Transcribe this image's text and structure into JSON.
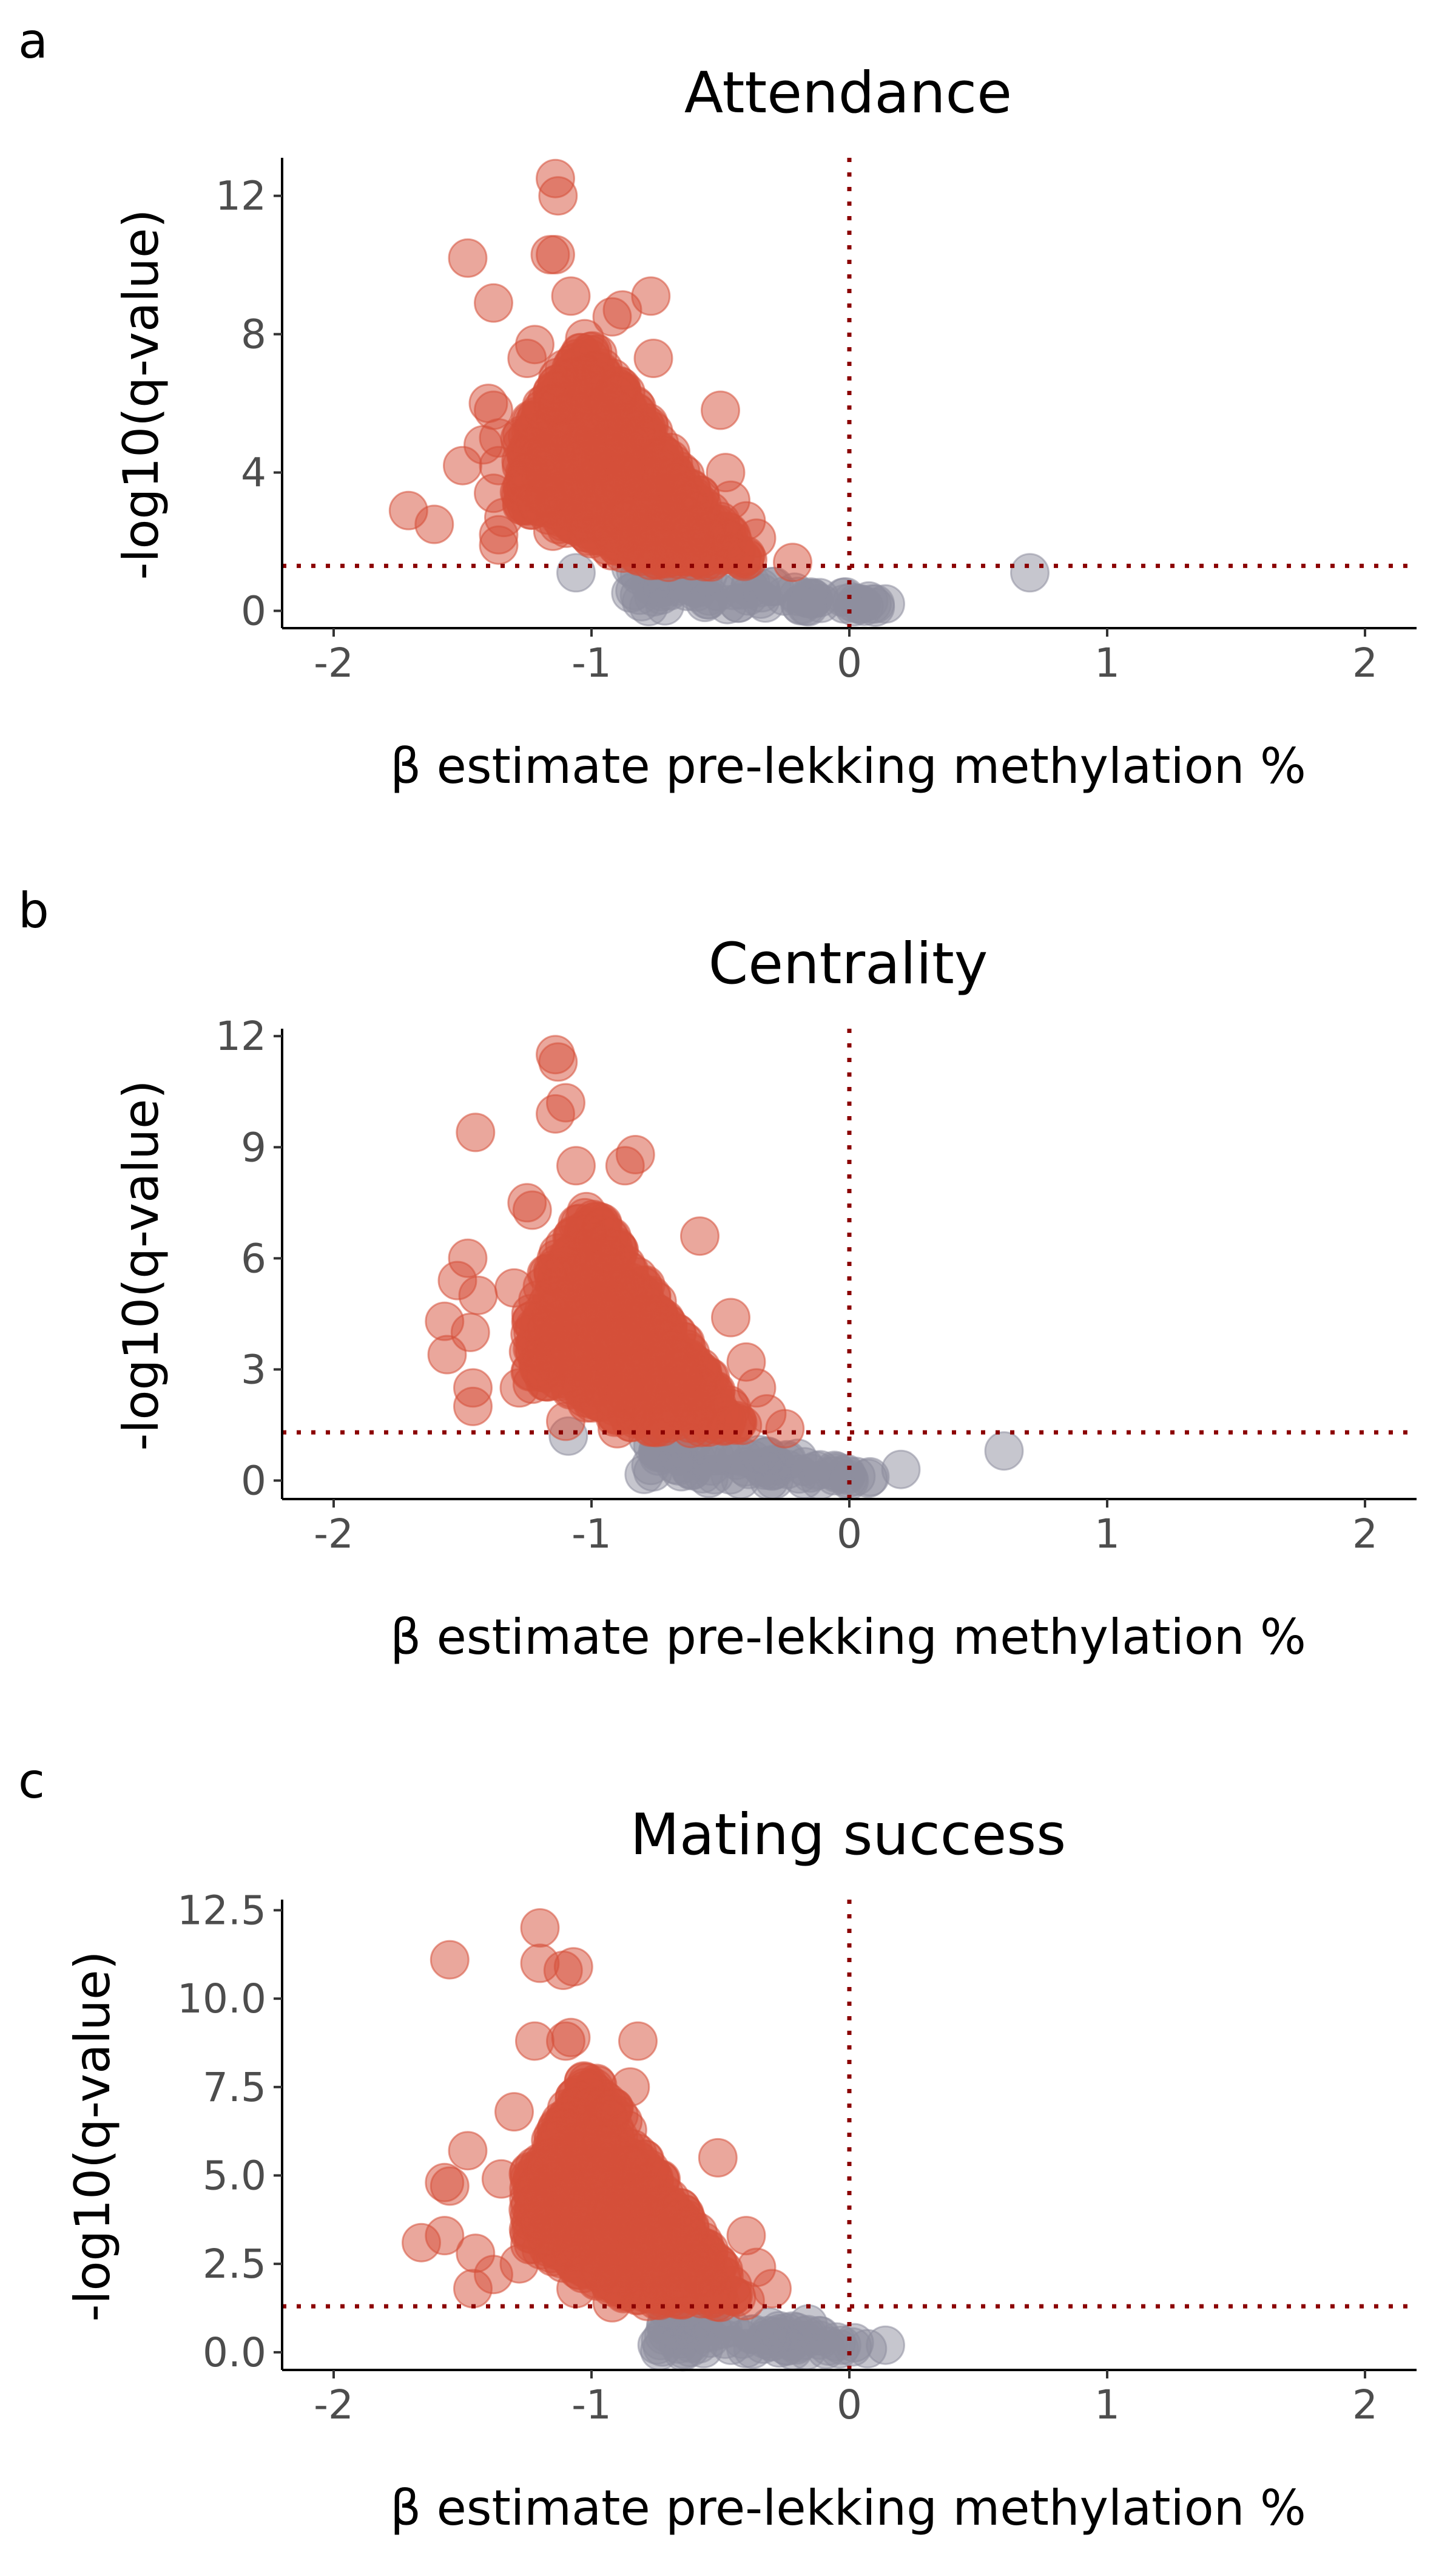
{
  "chart_data": [
    {
      "panel": "a",
      "type": "scatter",
      "title": "Attendance",
      "xlabel": "β estimate pre-lekking methylation %",
      "ylabel": "-log10(q-value)",
      "xlim": [
        -2.2,
        2.2
      ],
      "ylim": [
        -0.5,
        13.1
      ],
      "xticks": [
        -2,
        -1,
        0,
        1,
        2
      ],
      "yticks": [
        0,
        4,
        8,
        12
      ],
      "ytick_labels": [
        "0",
        "4",
        "8",
        "12"
      ],
      "ref_lines": {
        "x": 0,
        "y": 1.3
      },
      "grid": false,
      "legend": "none",
      "colors": {
        "significant": "#d6503a",
        "non_significant": "#8e8e9e"
      },
      "series": [
        {
          "group": "significant",
          "points": [
            [
              -1.14,
              12.5
            ],
            [
              -1.13,
              12.0
            ],
            [
              -1.14,
              10.3
            ],
            [
              -1.16,
              10.3
            ],
            [
              -1.48,
              10.2
            ],
            [
              -1.38,
              8.9
            ],
            [
              -0.77,
              9.1
            ],
            [
              -0.88,
              8.7
            ],
            [
              -1.08,
              9.1
            ],
            [
              -0.92,
              8.5
            ],
            [
              -1.22,
              7.7
            ],
            [
              -1.25,
              7.3
            ],
            [
              -0.76,
              7.3
            ],
            [
              -1.4,
              6.0
            ],
            [
              -1.38,
              5.8
            ],
            [
              -0.5,
              5.8
            ],
            [
              -1.36,
              5.0
            ],
            [
              -1.42,
              4.8
            ],
            [
              -1.36,
              4.2
            ],
            [
              -1.5,
              4.2
            ],
            [
              -1.38,
              3.4
            ],
            [
              -1.71,
              2.9
            ],
            [
              -1.61,
              2.5
            ],
            [
              -1.34,
              2.7
            ],
            [
              -1.36,
              2.2
            ],
            [
              -1.36,
              1.9
            ],
            [
              -0.48,
              4.0
            ],
            [
              -0.46,
              3.2
            ],
            [
              -0.4,
              2.6
            ],
            [
              -0.36,
              2.1
            ],
            [
              -0.22,
              1.4
            ],
            [
              -1.2,
              3.0
            ],
            [
              -1.15,
              2.3
            ],
            [
              -0.6,
              2.0
            ],
            [
              -0.7,
              1.8
            ]
          ],
          "cluster": {
            "x_range": [
              -1.28,
              -0.38
            ],
            "y_range": [
              1.4,
              8.0
            ],
            "n": 760
          }
        },
        {
          "group": "non_significant",
          "points": [
            [
              0.7,
              1.1
            ],
            [
              -1.06,
              1.1
            ],
            [
              0.04,
              0.2
            ],
            [
              0.14,
              0.2
            ],
            [
              0.1,
              0.2
            ],
            [
              -0.02,
              0.2
            ],
            [
              -0.15,
              0.4
            ],
            [
              -0.42,
              0.6
            ],
            [
              -0.3,
              0.7
            ],
            [
              -0.55,
              1.0
            ]
          ],
          "cluster": {
            "x_range": [
              -0.85,
              0.12
            ],
            "y_range": [
              0.1,
              1.3
            ],
            "n": 70
          }
        }
      ]
    },
    {
      "panel": "b",
      "type": "scatter",
      "title": "Centrality",
      "xlabel": "β estimate pre-lekking methylation %",
      "ylabel": "-log10(q-value)",
      "xlim": [
        -2.2,
        2.2
      ],
      "ylim": [
        -0.5,
        12.2
      ],
      "xticks": [
        -2,
        -1,
        0,
        1,
        2
      ],
      "yticks": [
        0,
        3,
        6,
        9,
        12
      ],
      "ytick_labels": [
        "0",
        "3",
        "6",
        "9",
        "12"
      ],
      "ref_lines": {
        "x": 0,
        "y": 1.3
      },
      "grid": false,
      "legend": "none",
      "colors": {
        "significant": "#d6503a",
        "non_significant": "#8e8e9e"
      },
      "series": [
        {
          "group": "significant",
          "points": [
            [
              -1.14,
              11.5
            ],
            [
              -1.13,
              11.3
            ],
            [
              -1.14,
              9.9
            ],
            [
              -1.1,
              10.2
            ],
            [
              -1.45,
              9.4
            ],
            [
              -0.83,
              8.8
            ],
            [
              -1.06,
              8.5
            ],
            [
              -0.87,
              8.5
            ],
            [
              -1.25,
              7.5
            ],
            [
              -1.23,
              7.3
            ],
            [
              -1.48,
              6.0
            ],
            [
              -1.52,
              5.4
            ],
            [
              -1.44,
              5.0
            ],
            [
              -0.58,
              6.6
            ],
            [
              -1.57,
              4.3
            ],
            [
              -1.47,
              4.0
            ],
            [
              -1.56,
              3.4
            ],
            [
              -1.46,
              2.5
            ],
            [
              -1.46,
              2.0
            ],
            [
              -1.28,
              2.5
            ],
            [
              -1.23,
              2.6
            ],
            [
              -0.46,
              4.4
            ],
            [
              -0.4,
              3.2
            ],
            [
              -0.36,
              2.5
            ],
            [
              -0.32,
              1.8
            ],
            [
              -0.25,
              1.4
            ],
            [
              -1.1,
              1.6
            ],
            [
              -0.9,
              1.4
            ],
            [
              -1.3,
              5.2
            ],
            [
              -1.18,
              2.9
            ]
          ],
          "cluster": {
            "x_range": [
              -1.25,
              -0.4
            ],
            "y_range": [
              1.4,
              7.5
            ],
            "n": 760
          }
        },
        {
          "group": "non_significant",
          "points": [
            [
              0.6,
              0.8
            ],
            [
              0.2,
              0.3
            ],
            [
              -1.09,
              1.2
            ],
            [
              0.08,
              0.1
            ],
            [
              0.0,
              0.0
            ],
            [
              -0.05,
              0.2
            ],
            [
              -0.2,
              0.6
            ],
            [
              -0.35,
              0.7
            ],
            [
              -0.5,
              0.8
            ],
            [
              -0.65,
              1.1
            ]
          ],
          "cluster": {
            "x_range": [
              -0.8,
              0.1
            ],
            "y_range": [
              0.0,
              1.3
            ],
            "n": 70
          }
        }
      ]
    },
    {
      "panel": "c",
      "type": "scatter",
      "title": "Mating success",
      "xlabel": "β estimate pre-lekking methylation %",
      "ylabel": "-log10(q-value)",
      "xlim": [
        -2.2,
        2.2
      ],
      "ylim": [
        -0.5,
        12.8
      ],
      "xticks": [
        -2,
        -1,
        0,
        1,
        2
      ],
      "yticks": [
        0,
        2.5,
        5,
        7.5,
        10,
        12.5
      ],
      "ytick_labels": [
        "0.0",
        "2.5",
        "5.0",
        "7.5",
        "10.0",
        "12.5"
      ],
      "ref_lines": {
        "x": 0,
        "y": 1.3
      },
      "grid": false,
      "legend": "none",
      "colors": {
        "significant": "#d6503a",
        "non_significant": "#8e8e9e"
      },
      "series": [
        {
          "group": "significant",
          "points": [
            [
              -1.2,
              12.0
            ],
            [
              -1.55,
              11.1
            ],
            [
              -1.2,
              11.0
            ],
            [
              -1.11,
              10.8
            ],
            [
              -1.07,
              10.9
            ],
            [
              -1.22,
              8.8
            ],
            [
              -1.08,
              8.9
            ],
            [
              -1.1,
              8.8
            ],
            [
              -0.82,
              8.8
            ],
            [
              -1.3,
              6.8
            ],
            [
              -1.48,
              5.7
            ],
            [
              -1.57,
              4.8
            ],
            [
              -1.55,
              4.7
            ],
            [
              -0.51,
              5.5
            ],
            [
              -1.66,
              3.1
            ],
            [
              -1.57,
              3.3
            ],
            [
              -1.45,
              2.8
            ],
            [
              -1.38,
              2.2
            ],
            [
              -1.46,
              1.8
            ],
            [
              -1.28,
              2.5
            ],
            [
              -0.4,
              3.3
            ],
            [
              -0.36,
              2.4
            ],
            [
              -0.3,
              1.8
            ],
            [
              -0.92,
              1.4
            ],
            [
              -1.06,
              1.8
            ],
            [
              -0.6,
              1.6
            ],
            [
              -1.35,
              4.9
            ],
            [
              -1.2,
              3.6
            ],
            [
              -0.85,
              7.5
            ],
            [
              -1.0,
              7.2
            ]
          ],
          "cluster": {
            "x_range": [
              -1.25,
              -0.4
            ],
            "y_range": [
              1.4,
              8.0
            ],
            "n": 760
          }
        },
        {
          "group": "non_significant",
          "points": [
            [
              0.14,
              0.2
            ],
            [
              -0.03,
              0.2
            ],
            [
              0.07,
              0.1
            ],
            [
              -0.54,
              0.4
            ],
            [
              -0.38,
              0.5
            ],
            [
              -0.22,
              0.6
            ],
            [
              -0.16,
              0.8
            ],
            [
              -0.46,
              0.7
            ],
            [
              -0.7,
              1.2
            ],
            [
              -0.3,
              0.3
            ]
          ],
          "cluster": {
            "x_range": [
              -0.75,
              0.1
            ],
            "y_range": [
              0.0,
              1.3
            ],
            "n": 70
          }
        }
      ]
    }
  ]
}
